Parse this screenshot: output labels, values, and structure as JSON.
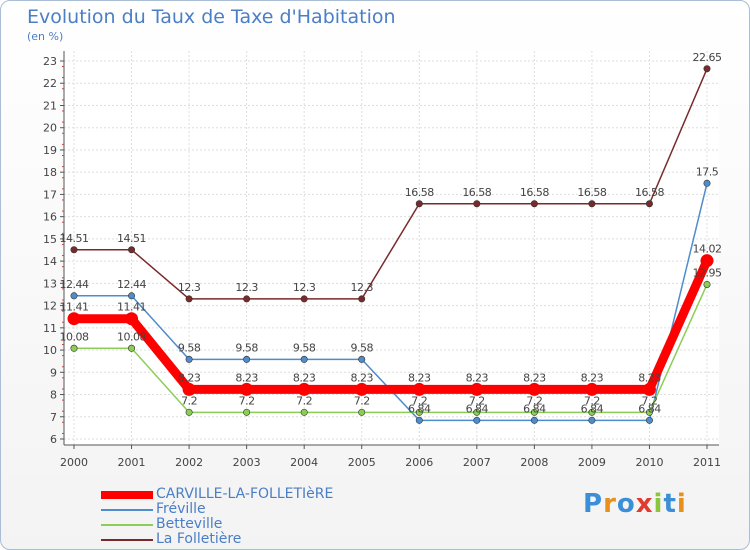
{
  "header": {
    "title": "Evolution du Taux de Taxe d'Habitation",
    "subtitle": "(en %)"
  },
  "logo": {
    "text": "Proxiti"
  },
  "chart_data": {
    "type": "line",
    "title": "Evolution du Taux de Taxe d'Habitation",
    "ylabel": "(en %)",
    "xlabel": "",
    "x": [
      "2000",
      "2001",
      "2002",
      "2003",
      "2004",
      "2005",
      "2006",
      "2007",
      "2008",
      "2009",
      "2010",
      "2011"
    ],
    "ylim": [
      6,
      23
    ],
    "yticks": [
      "6",
      "7",
      "8",
      "9",
      "10",
      "11",
      "12",
      "13",
      "14",
      "15",
      "16",
      "17",
      "18",
      "19",
      "20",
      "21",
      "22",
      "23"
    ],
    "grid": true,
    "series": [
      {
        "name": "CARVILLE-LA-FOLLETIèRE",
        "color": "#ff0000",
        "values": [
          11.41,
          11.41,
          8.23,
          8.23,
          8.23,
          8.23,
          8.23,
          8.23,
          8.23,
          8.23,
          8.23,
          14.02
        ],
        "labels": [
          "11.41",
          "11.41",
          "8.23",
          "8.23",
          "8.23",
          "8.23",
          "8.23",
          "8.23",
          "8.23",
          "8.23",
          "8.23",
          "14.02"
        ]
      },
      {
        "name": "Fréville",
        "color": "#4f8ccd",
        "values": [
          12.44,
          12.44,
          9.58,
          9.58,
          9.58,
          9.58,
          6.84,
          6.84,
          6.84,
          6.84,
          6.84,
          17.5
        ],
        "labels": [
          "12.44",
          "12.44",
          "9.58",
          "9.58",
          "9.58",
          "9.58",
          "6.84",
          "6.84",
          "6.84",
          "6.84",
          "6.84",
          "17.5"
        ]
      },
      {
        "name": "Betteville",
        "color": "#8ccd57",
        "values": [
          10.08,
          10.08,
          7.2,
          7.2,
          7.2,
          7.2,
          7.2,
          7.2,
          7.2,
          7.2,
          7.2,
          12.95
        ],
        "labels": [
          "10.08",
          "10.08",
          "7.2",
          "7.2",
          "7.2",
          "7.2",
          "7.2",
          "7.2",
          "7.2",
          "7.2",
          "7.2",
          "12.95"
        ]
      },
      {
        "name": "La Folletière",
        "color": "#7a2a2a",
        "values": [
          14.51,
          14.51,
          12.3,
          12.3,
          12.3,
          12.3,
          16.58,
          16.58,
          16.58,
          16.58,
          16.58,
          22.65
        ],
        "labels": [
          "14.51",
          "14.51",
          "12.3",
          "12.3",
          "12.3",
          "12.3",
          "16.58",
          "16.58",
          "16.58",
          "16.58",
          "16.58",
          "22.65"
        ]
      }
    ],
    "legend_position": "bottom-left"
  }
}
